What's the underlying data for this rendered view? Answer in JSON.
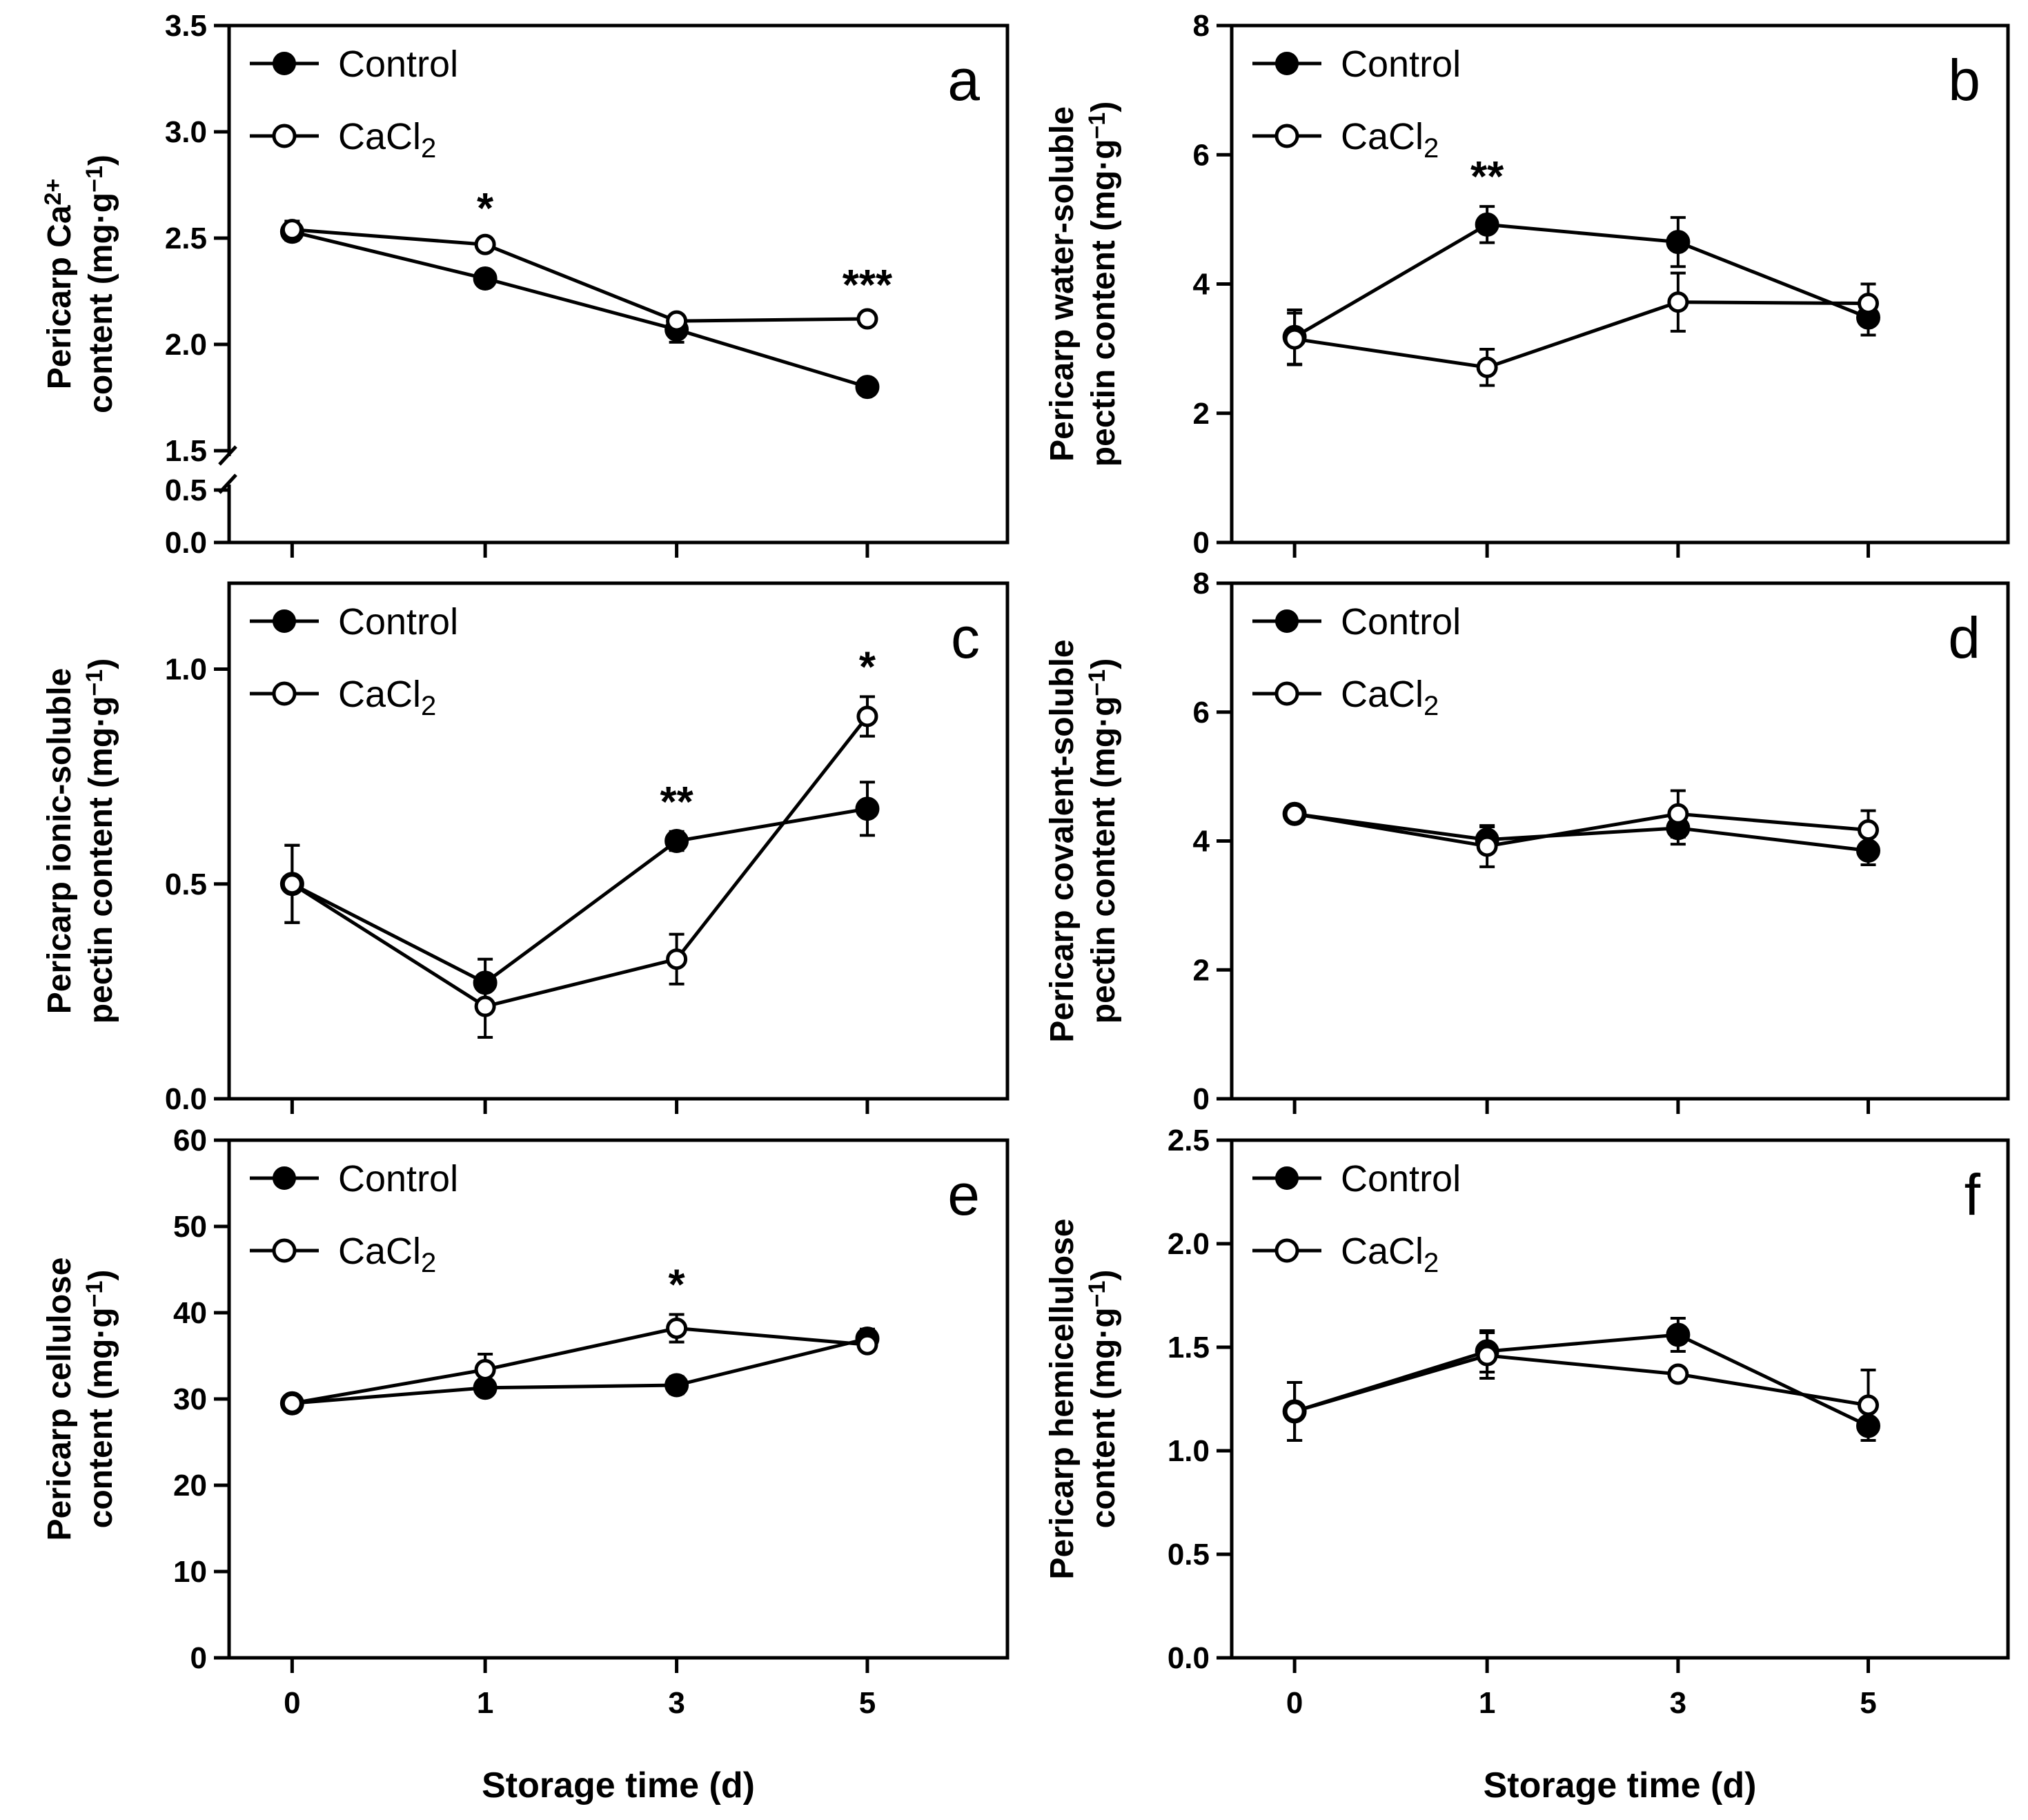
{
  "legend": {
    "control": "Control",
    "cacl2_base": "CaCl",
    "cacl2_sub": "2"
  },
  "xlabel": "Storage time (d)",
  "colors": {
    "ink": "#000000",
    "open_fill": "#ffffff"
  },
  "chart_data": [
    {
      "panel": "a",
      "type": "line",
      "ylabel_lines": [
        [
          {
            "t": "Pericarp Ca"
          },
          {
            "t": "2+",
            "sup": true
          }
        ],
        [
          {
            "t": "content (mg·g"
          },
          {
            "t": "−1",
            "sup": true
          },
          {
            "t": ")"
          }
        ]
      ],
      "x": [
        0,
        1,
        3,
        5
      ],
      "x_tick_labels": [
        "0",
        "1",
        "3",
        "5"
      ],
      "y_break": {
        "lower": [
          0,
          0.5
        ],
        "upper": [
          1.5,
          3.5
        ]
      },
      "y_ticks": [
        "0.0",
        "0.5",
        "1.5",
        "2.0",
        "2.5",
        "3.0",
        "3.5"
      ],
      "series": [
        {
          "name": "Control",
          "marker": "filled",
          "values": [
            2.53,
            2.31,
            2.07,
            1.8
          ],
          "errors": [
            0.04,
            0.02,
            0.06,
            0.02
          ]
        },
        {
          "name": "CaCl2",
          "marker": "open",
          "values": [
            2.54,
            2.47,
            2.11,
            2.12
          ],
          "errors": [
            0.04,
            0.03,
            0.03,
            0.02
          ]
        }
      ],
      "significance": [
        {
          "x": 1,
          "label": "*"
        },
        {
          "x": 5,
          "label": "***"
        }
      ]
    },
    {
      "panel": "b",
      "type": "line",
      "ylabel_lines": [
        [
          {
            "t": "Pericarp water-soluble"
          }
        ],
        [
          {
            "t": "pectin content (mg·g"
          },
          {
            "t": "−1",
            "sup": true
          },
          {
            "t": ")"
          }
        ]
      ],
      "x": [
        0,
        1,
        3,
        5
      ],
      "x_tick_labels": [
        "0",
        "1",
        "3",
        "5"
      ],
      "ylim": [
        0,
        8
      ],
      "y_ticks": [
        "0",
        "2",
        "4",
        "6",
        "8"
      ],
      "series": [
        {
          "name": "Control",
          "marker": "filled",
          "values": [
            3.18,
            4.92,
            4.65,
            3.48
          ],
          "errors": [
            0.42,
            0.28,
            0.38,
            0.27
          ]
        },
        {
          "name": "CaCl2",
          "marker": "open",
          "values": [
            3.15,
            2.71,
            3.72,
            3.7
          ],
          "errors": [
            0.4,
            0.28,
            0.45,
            0.3
          ]
        }
      ],
      "significance": [
        {
          "x": 1,
          "label": "**"
        }
      ]
    },
    {
      "panel": "c",
      "type": "line",
      "ylabel_lines": [
        [
          {
            "t": "Pericarp ionic-soluble"
          }
        ],
        [
          {
            "t": "pectin content (mg·g"
          },
          {
            "t": "−1",
            "sup": true
          },
          {
            "t": ")"
          }
        ]
      ],
      "x": [
        0,
        1,
        3,
        5
      ],
      "x_tick_labels": [
        "0",
        "1",
        "3",
        "5"
      ],
      "ylim": [
        0,
        1.2
      ],
      "y_ticks": [
        "0.0",
        "0.5",
        "1.0"
      ],
      "series": [
        {
          "name": "Control",
          "marker": "filled",
          "values": [
            0.5,
            0.27,
            0.6,
            0.675
          ],
          "errors": [
            0.09,
            0.055,
            0.022,
            0.062
          ]
        },
        {
          "name": "CaCl2",
          "marker": "open",
          "values": [
            0.5,
            0.215,
            0.325,
            0.89
          ],
          "errors": [
            0.09,
            0.072,
            0.058,
            0.046
          ]
        }
      ],
      "significance": [
        {
          "x": 3,
          "label": "**"
        },
        {
          "x": 5,
          "label": "*"
        }
      ]
    },
    {
      "panel": "d",
      "type": "line",
      "ylabel_lines": [
        [
          {
            "t": "Pericarp covalent-soluble"
          }
        ],
        [
          {
            "t": "pectin content (mg·g"
          },
          {
            "t": "−1",
            "sup": true
          },
          {
            "t": ")"
          }
        ]
      ],
      "x": [
        0,
        1,
        3,
        5
      ],
      "x_tick_labels": [
        "0",
        "1",
        "3",
        "5"
      ],
      "ylim": [
        0,
        8
      ],
      "y_ticks": [
        "0",
        "2",
        "4",
        "6",
        "8"
      ],
      "series": [
        {
          "name": "Control",
          "marker": "filled",
          "values": [
            4.42,
            4.02,
            4.2,
            3.85
          ],
          "errors": [
            0.05,
            0.2,
            0.25,
            0.22
          ]
        },
        {
          "name": "CaCl2",
          "marker": "open",
          "values": [
            4.42,
            3.92,
            4.42,
            4.17
          ],
          "errors": [
            0.05,
            0.32,
            0.36,
            0.3
          ]
        }
      ],
      "significance": []
    },
    {
      "panel": "e",
      "type": "line",
      "ylabel_lines": [
        [
          {
            "t": "Pericarp cellulose"
          }
        ],
        [
          {
            "t": "content (mg·g"
          },
          {
            "t": "−1",
            "sup": true
          },
          {
            "t": ")"
          }
        ]
      ],
      "x": [
        0,
        1,
        3,
        5
      ],
      "x_tick_labels": [
        "0",
        "1",
        "3",
        "5"
      ],
      "ylim": [
        0,
        60
      ],
      "y_ticks": [
        "0",
        "10",
        "20",
        "30",
        "40",
        "50",
        "60"
      ],
      "series": [
        {
          "name": "Control",
          "marker": "filled",
          "values": [
            29.5,
            31.3,
            31.6,
            37.0
          ],
          "errors": [
            0.5,
            0.6,
            1.0,
            1.1
          ]
        },
        {
          "name": "CaCl2",
          "marker": "open",
          "values": [
            29.5,
            33.4,
            38.2,
            36.3
          ],
          "errors": [
            0.5,
            1.8,
            1.6,
            0.7
          ]
        }
      ],
      "significance": [
        {
          "x": 3,
          "label": "*"
        }
      ]
    },
    {
      "panel": "f",
      "type": "line",
      "ylabel_lines": [
        [
          {
            "t": "Pericarp hemicellulose"
          }
        ],
        [
          {
            "t": "content (mg·g"
          },
          {
            "t": "−1",
            "sup": true
          },
          {
            "t": ")"
          }
        ]
      ],
      "x": [
        0,
        1,
        3,
        5
      ],
      "x_tick_labels": [
        "0",
        "1",
        "3",
        "5"
      ],
      "ylim": [
        0,
        2.5
      ],
      "y_ticks": [
        "0.0",
        "0.5",
        "1.0",
        "1.5",
        "2.0",
        "2.5"
      ],
      "series": [
        {
          "name": "Control",
          "marker": "filled",
          "values": [
            1.19,
            1.48,
            1.56,
            1.12
          ],
          "errors": [
            0.14,
            0.1,
            0.08,
            0.07
          ]
        },
        {
          "name": "CaCl2",
          "marker": "open",
          "values": [
            1.19,
            1.46,
            1.37,
            1.22
          ],
          "errors": [
            0.14,
            0.11,
            0.02,
            0.17
          ]
        }
      ],
      "significance": []
    }
  ]
}
